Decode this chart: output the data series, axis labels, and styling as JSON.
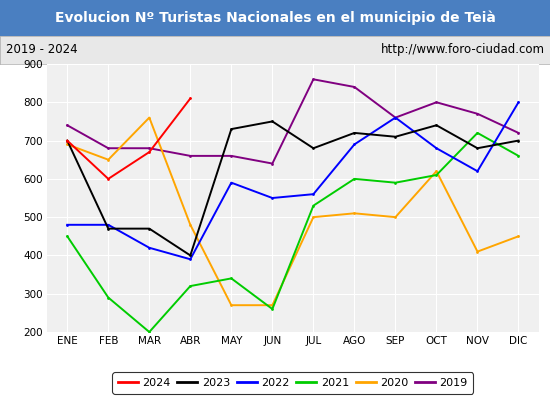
{
  "title": "Evolucion Nº Turistas Nacionales en el municipio de Teià",
  "subtitle_left": "2019 - 2024",
  "subtitle_right": "http://www.foro-ciudad.com",
  "title_bg": "#4a7fc1",
  "subtitle_bg": "#e8e8e8",
  "plot_bg": "#f0f0f0",
  "fig_bg": "#ffffff",
  "months": [
    "ENE",
    "FEB",
    "MAR",
    "ABR",
    "MAY",
    "JUN",
    "JUL",
    "AGO",
    "SEP",
    "OCT",
    "NOV",
    "DIC"
  ],
  "ylim": [
    200,
    900
  ],
  "yticks": [
    200,
    300,
    400,
    500,
    600,
    700,
    800,
    900
  ],
  "series": {
    "2024": {
      "color": "#ff0000",
      "data": [
        700,
        600,
        670,
        810,
        null,
        null,
        null,
        null,
        null,
        null,
        null,
        null
      ]
    },
    "2023": {
      "color": "#000000",
      "data": [
        700,
        470,
        470,
        400,
        730,
        750,
        680,
        720,
        710,
        740,
        680,
        700
      ]
    },
    "2022": {
      "color": "#0000ff",
      "data": [
        480,
        480,
        420,
        390,
        590,
        550,
        560,
        690,
        760,
        680,
        620,
        800
      ]
    },
    "2021": {
      "color": "#00cc00",
      "data": [
        450,
        290,
        200,
        320,
        340,
        260,
        530,
        600,
        590,
        610,
        720,
        660
      ]
    },
    "2020": {
      "color": "#ffa500",
      "data": [
        690,
        650,
        760,
        480,
        270,
        270,
        500,
        510,
        500,
        620,
        410,
        450
      ]
    },
    "2019": {
      "color": "#800080",
      "data": [
        740,
        680,
        680,
        660,
        660,
        640,
        860,
        840,
        760,
        800,
        770,
        720
      ]
    }
  },
  "legend_order": [
    "2024",
    "2023",
    "2022",
    "2021",
    "2020",
    "2019"
  ]
}
